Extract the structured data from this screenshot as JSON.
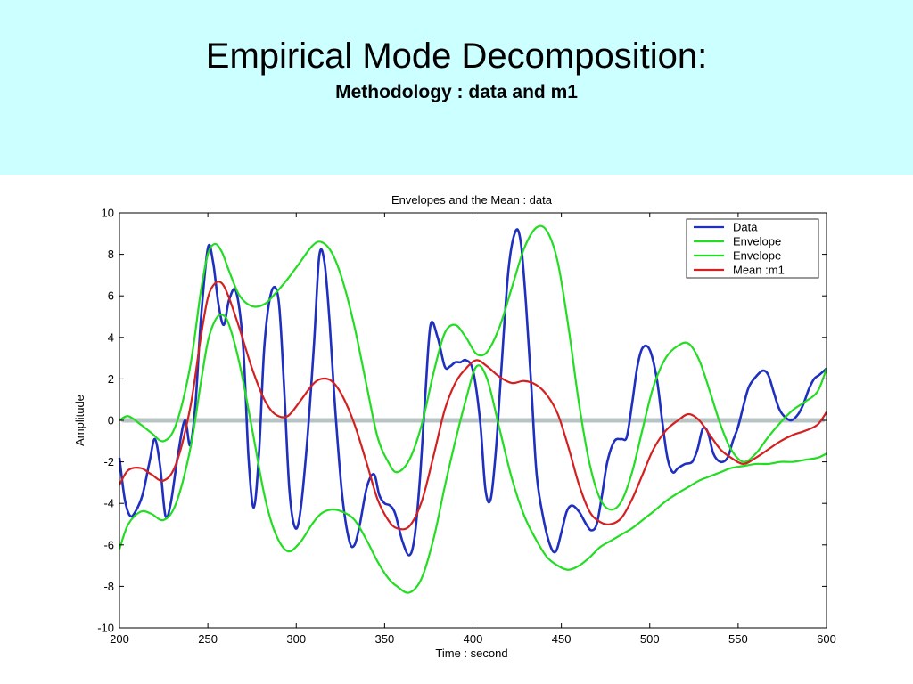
{
  "slide": {
    "title": "Empirical Mode Decomposition:",
    "subtitle": "Methodology : data and m1"
  },
  "colors": {
    "header_background": "#ccffff",
    "data": "#1f2fbf",
    "envelope": "#22dd22",
    "mean": "#d42020",
    "zero_line": "#b8c4c4"
  },
  "chart_data": {
    "type": "line",
    "title": "Envelopes and the Mean : data",
    "xlabel": "Time : second",
    "ylabel": "Amplitude",
    "xlim": [
      200,
      600
    ],
    "ylim": [
      -10,
      10
    ],
    "xticks": [
      200,
      250,
      300,
      350,
      400,
      450,
      500,
      550,
      600
    ],
    "yticks": [
      10,
      8,
      6,
      4,
      2,
      0,
      -2,
      -4,
      -6,
      -8,
      -10
    ],
    "grid": false,
    "legend_position": "top-right",
    "series": [
      {
        "name": "Data",
        "color": "#1f2fbf",
        "x": [
          200,
          203,
          206,
          209,
          213,
          217,
          220,
          223,
          226,
          229,
          233,
          237,
          240,
          243,
          246,
          250,
          253,
          256,
          259,
          262,
          266,
          270,
          273,
          276,
          279,
          282,
          286,
          290,
          293,
          296,
          299,
          302,
          306,
          310,
          313,
          316,
          319,
          322,
          326,
          330,
          333,
          336,
          340,
          344,
          347,
          350,
          353,
          356,
          360,
          364,
          367,
          370,
          373,
          376,
          380,
          384,
          387,
          390,
          393,
          396,
          400,
          404,
          407,
          410,
          413,
          416,
          420,
          424,
          427,
          430,
          433,
          436,
          440,
          444,
          447,
          450,
          453,
          456,
          460,
          464,
          467,
          470,
          473,
          476,
          480,
          484,
          487,
          490,
          493,
          496,
          500,
          504,
          507,
          510,
          513,
          516,
          520,
          524,
          527,
          530,
          533,
          536,
          540,
          544,
          547,
          550,
          553,
          556,
          560,
          564,
          567,
          570,
          573,
          576,
          580,
          584,
          587,
          590,
          593,
          596,
          600
        ],
        "y": [
          -1.8,
          -3.8,
          -4.6,
          -4.4,
          -3.6,
          -2.0,
          -0.9,
          -2.2,
          -4.6,
          -4.0,
          -1.7,
          0.0,
          -1.2,
          0.8,
          4.8,
          8.3,
          7.6,
          5.6,
          4.6,
          5.8,
          6.2,
          3.5,
          -1.8,
          -4.2,
          -1.5,
          3.6,
          6.2,
          5.8,
          1.8,
          -3.2,
          -5.1,
          -4.6,
          -1.2,
          3.6,
          7.9,
          7.6,
          4.6,
          0.6,
          -3.6,
          -5.8,
          -6.0,
          -5.0,
          -3.2,
          -2.6,
          -3.6,
          -4.0,
          -4.1,
          -4.5,
          -5.8,
          -6.5,
          -5.6,
          -2.8,
          1.2,
          4.6,
          4.0,
          2.6,
          2.6,
          2.8,
          2.8,
          2.9,
          2.4,
          0.0,
          -3.3,
          -3.8,
          -1.4,
          2.4,
          7.2,
          9.1,
          8.6,
          5.6,
          1.6,
          -2.6,
          -4.8,
          -6.1,
          -6.3,
          -5.4,
          -4.4,
          -4.1,
          -4.4,
          -5.0,
          -5.3,
          -5.0,
          -3.6,
          -2.0,
          -1.0,
          -0.9,
          -0.8,
          0.8,
          2.6,
          3.5,
          3.4,
          2.0,
          0.0,
          -1.8,
          -2.5,
          -2.3,
          -2.1,
          -2.0,
          -1.4,
          -0.4,
          -0.6,
          -1.6,
          -2.0,
          -1.8,
          -1.0,
          -0.3,
          0.7,
          1.6,
          2.1,
          2.4,
          2.2,
          1.4,
          0.6,
          0.2,
          0.0,
          0.3,
          0.8,
          1.5,
          2.0,
          2.2,
          2.5
        ]
      },
      {
        "name": "Envelope",
        "color": "#22dd22",
        "x": [
          200,
          205,
          212,
          218,
          225,
          232,
          240,
          246,
          250,
          254,
          258,
          262,
          268,
          275,
          282,
          288,
          295,
          302,
          309,
          314,
          320,
          326,
          333,
          340,
          346,
          352,
          357,
          364,
          371,
          378,
          384,
          390,
          396,
          402,
          408,
          415,
          422,
          429,
          436,
          442,
          448,
          454,
          460,
          466,
          472,
          478,
          484,
          490,
          496,
          502,
          509,
          516,
          522,
          528,
          534,
          540,
          546,
          553,
          560,
          567,
          574,
          581,
          588,
          595,
          600
        ],
        "y": [
          0.0,
          0.2,
          -0.2,
          -0.6,
          -1.0,
          -0.2,
          2.6,
          6.2,
          8.0,
          8.5,
          8.1,
          7.2,
          6.0,
          5.5,
          5.6,
          6.1,
          6.8,
          7.6,
          8.4,
          8.6,
          8.1,
          6.8,
          4.5,
          1.6,
          -0.8,
          -2.0,
          -2.5,
          -1.9,
          -0.2,
          2.4,
          4.2,
          4.6,
          4.0,
          3.2,
          3.3,
          4.5,
          6.4,
          8.3,
          9.3,
          9.1,
          7.6,
          4.5,
          0.8,
          -2.1,
          -3.8,
          -4.3,
          -3.9,
          -2.5,
          -0.4,
          1.6,
          3.0,
          3.6,
          3.7,
          2.9,
          1.4,
          -0.2,
          -1.4,
          -2.0,
          -1.6,
          -0.8,
          -0.1,
          0.5,
          0.9,
          1.4,
          2.5
        ]
      },
      {
        "name": "Envelope",
        "color": "#22dd22",
        "x": [
          200,
          205,
          212,
          218,
          225,
          232,
          240,
          246,
          250,
          254,
          258,
          262,
          268,
          275,
          282,
          288,
          295,
          302,
          309,
          314,
          320,
          326,
          333,
          340,
          346,
          352,
          357,
          364,
          371,
          378,
          384,
          390,
          396,
          402,
          408,
          415,
          422,
          429,
          436,
          442,
          448,
          454,
          460,
          466,
          472,
          478,
          484,
          490,
          496,
          502,
          509,
          516,
          522,
          528,
          534,
          540,
          546,
          553,
          560,
          567,
          574,
          581,
          588,
          595,
          600
        ],
        "y": [
          -6.2,
          -5.0,
          -4.4,
          -4.5,
          -4.8,
          -4.0,
          -1.4,
          1.8,
          3.8,
          4.8,
          5.1,
          4.6,
          2.7,
          -0.4,
          -3.6,
          -5.4,
          -6.3,
          -5.9,
          -5.0,
          -4.5,
          -4.3,
          -4.4,
          -4.8,
          -5.8,
          -6.8,
          -7.6,
          -8.0,
          -8.3,
          -7.6,
          -5.6,
          -3.2,
          -1.0,
          1.0,
          2.6,
          2.0,
          -0.4,
          -2.8,
          -4.6,
          -5.8,
          -6.6,
          -7.0,
          -7.2,
          -7.0,
          -6.6,
          -6.1,
          -5.8,
          -5.5,
          -5.2,
          -4.8,
          -4.4,
          -3.9,
          -3.5,
          -3.2,
          -2.9,
          -2.7,
          -2.5,
          -2.3,
          -2.2,
          -2.1,
          -2.1,
          -2.0,
          -2.0,
          -1.9,
          -1.8,
          -1.6
        ]
      },
      {
        "name": "Mean :m1",
        "color": "#d42020",
        "x": [
          200,
          205,
          212,
          218,
          225,
          232,
          240,
          246,
          250,
          254,
          258,
          262,
          268,
          275,
          282,
          288,
          295,
          302,
          309,
          314,
          320,
          326,
          333,
          340,
          346,
          352,
          357,
          364,
          371,
          378,
          384,
          390,
          396,
          402,
          408,
          415,
          422,
          429,
          436,
          442,
          448,
          454,
          460,
          466,
          472,
          478,
          484,
          490,
          496,
          502,
          509,
          516,
          522,
          528,
          534,
          540,
          546,
          553,
          560,
          567,
          574,
          581,
          588,
          595,
          600
        ],
        "y": [
          -3.1,
          -2.4,
          -2.3,
          -2.6,
          -2.9,
          -2.1,
          0.6,
          4.0,
          5.9,
          6.6,
          6.6,
          5.9,
          4.4,
          2.5,
          1.0,
          0.3,
          0.2,
          0.9,
          1.7,
          2.0,
          1.9,
          1.2,
          -0.2,
          -2.1,
          -3.8,
          -4.8,
          -5.2,
          -5.1,
          -3.9,
          -1.6,
          0.5,
          1.8,
          2.5,
          2.9,
          2.6,
          2.1,
          1.8,
          1.9,
          1.7,
          1.2,
          0.3,
          -1.3,
          -3.1,
          -4.4,
          -4.9,
          -5.0,
          -4.7,
          -3.8,
          -2.6,
          -1.4,
          -0.5,
          0.0,
          0.3,
          0.0,
          -0.7,
          -1.4,
          -1.8,
          -2.1,
          -1.8,
          -1.4,
          -1.0,
          -0.7,
          -0.5,
          -0.2,
          0.4
        ]
      }
    ]
  }
}
